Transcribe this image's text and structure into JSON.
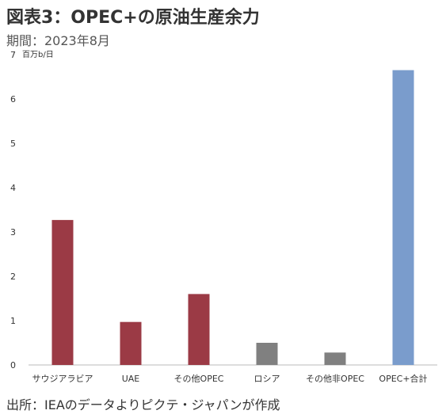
{
  "title": "図表3：OPEC+の原油生産余力",
  "subtitle": "期間：2023年8月",
  "source": "出所：IEAのデータよりピクテ・ジャパンが作成",
  "chart_data": {
    "type": "bar",
    "unit_label": "百万b/日",
    "categories": [
      "サウジアラビア",
      "UAE",
      "その他OPEC",
      "ロシア",
      "その他非OPEC",
      "OPEC+合計"
    ],
    "values": [
      3.27,
      0.97,
      1.6,
      0.5,
      0.28,
      6.65
    ],
    "colors": [
      "#9b3a45",
      "#9b3a45",
      "#9b3a45",
      "#808080",
      "#808080",
      "#7a9ccc"
    ],
    "yticks": [
      "0",
      "1",
      "2",
      "3",
      "4",
      "5",
      "6",
      "7"
    ],
    "ylim": [
      0,
      7
    ],
    "grid": false
  }
}
